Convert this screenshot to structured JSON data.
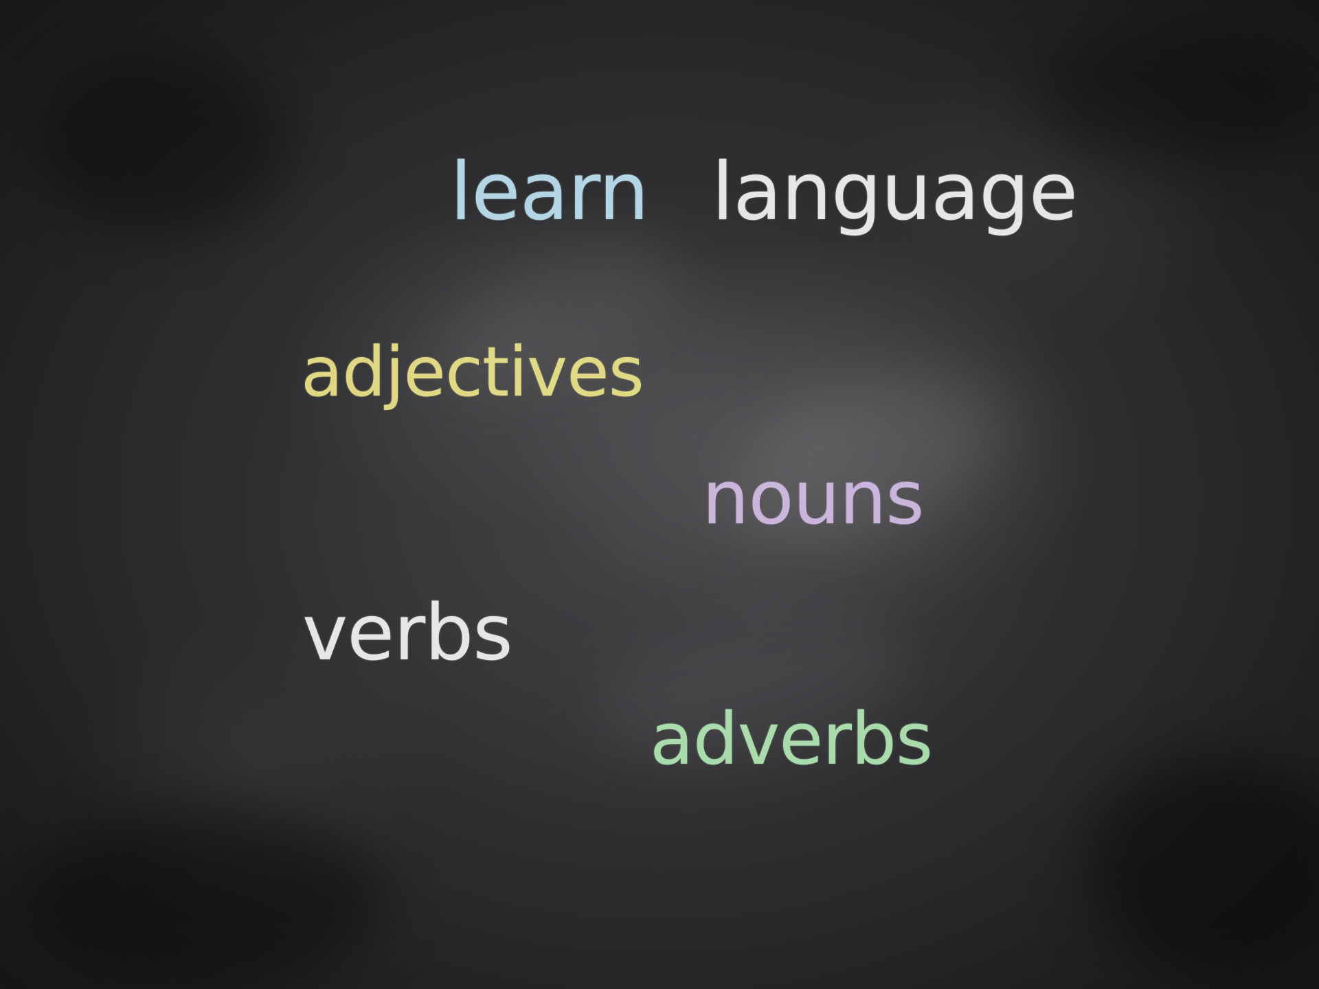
{
  "board": {
    "background_color": "#2e2e30",
    "words": {
      "learn": {
        "text": "learn",
        "color": "#bfe3f2"
      },
      "language": {
        "text": "language",
        "color": "#f4f4f2"
      },
      "adjectives": {
        "text": "adjectives",
        "color": "#ece48a"
      },
      "nouns": {
        "text": "nouns",
        "color": "#d4bde6"
      },
      "verbs": {
        "text": "verbs",
        "color": "#f4f4f2"
      },
      "adverbs": {
        "text": "adverbs",
        "color": "#b3e8b6"
      }
    }
  }
}
